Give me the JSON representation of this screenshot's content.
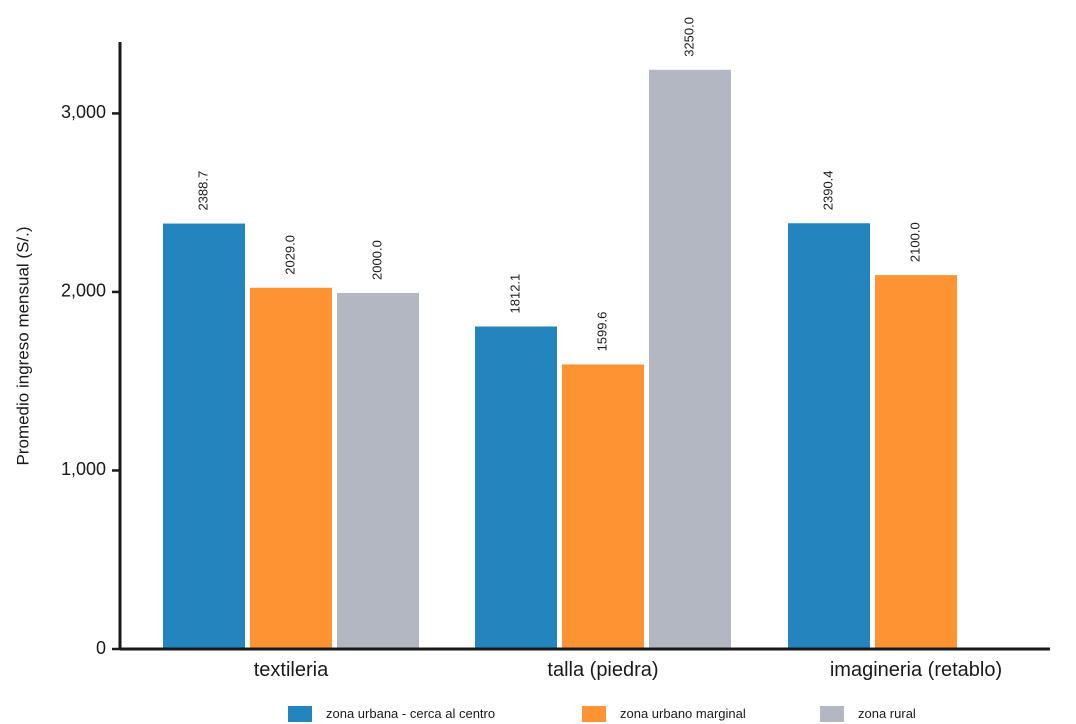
{
  "chart_data": {
    "type": "bar",
    "title": "",
    "xlabel": "",
    "ylabel": "Promedio ingreso mensual (S/.)",
    "ylim": [
      0,
      3400
    ],
    "yticks": [
      0,
      1000,
      2000,
      3000
    ],
    "ytick_labels": [
      "0",
      "1,000",
      "2,000",
      "3,000"
    ],
    "grid": false,
    "legend_position": "bottom",
    "categories": [
      "textileria",
      "talla (piedra)",
      "imagineria (retablo)"
    ],
    "series": [
      {
        "name": "zona urbana - cerca al centro",
        "color": "#2484BE",
        "values": [
          2388.7,
          1812.1,
          2390.4
        ],
        "labels": [
          "2388.7",
          "1812.1",
          "2390.4"
        ]
      },
      {
        "name": "zona urbano marginal",
        "color": "#FD9332",
        "values": [
          2029.0,
          1599.6,
          2100.0
        ],
        "labels": [
          "2029.0",
          "1599.6",
          "2100.0"
        ]
      },
      {
        "name": "zona rural",
        "color": "#B2B7C2",
        "values": [
          2000.0,
          3250.0,
          null
        ],
        "labels": [
          "2000.0",
          "3250.0",
          null
        ]
      }
    ]
  }
}
